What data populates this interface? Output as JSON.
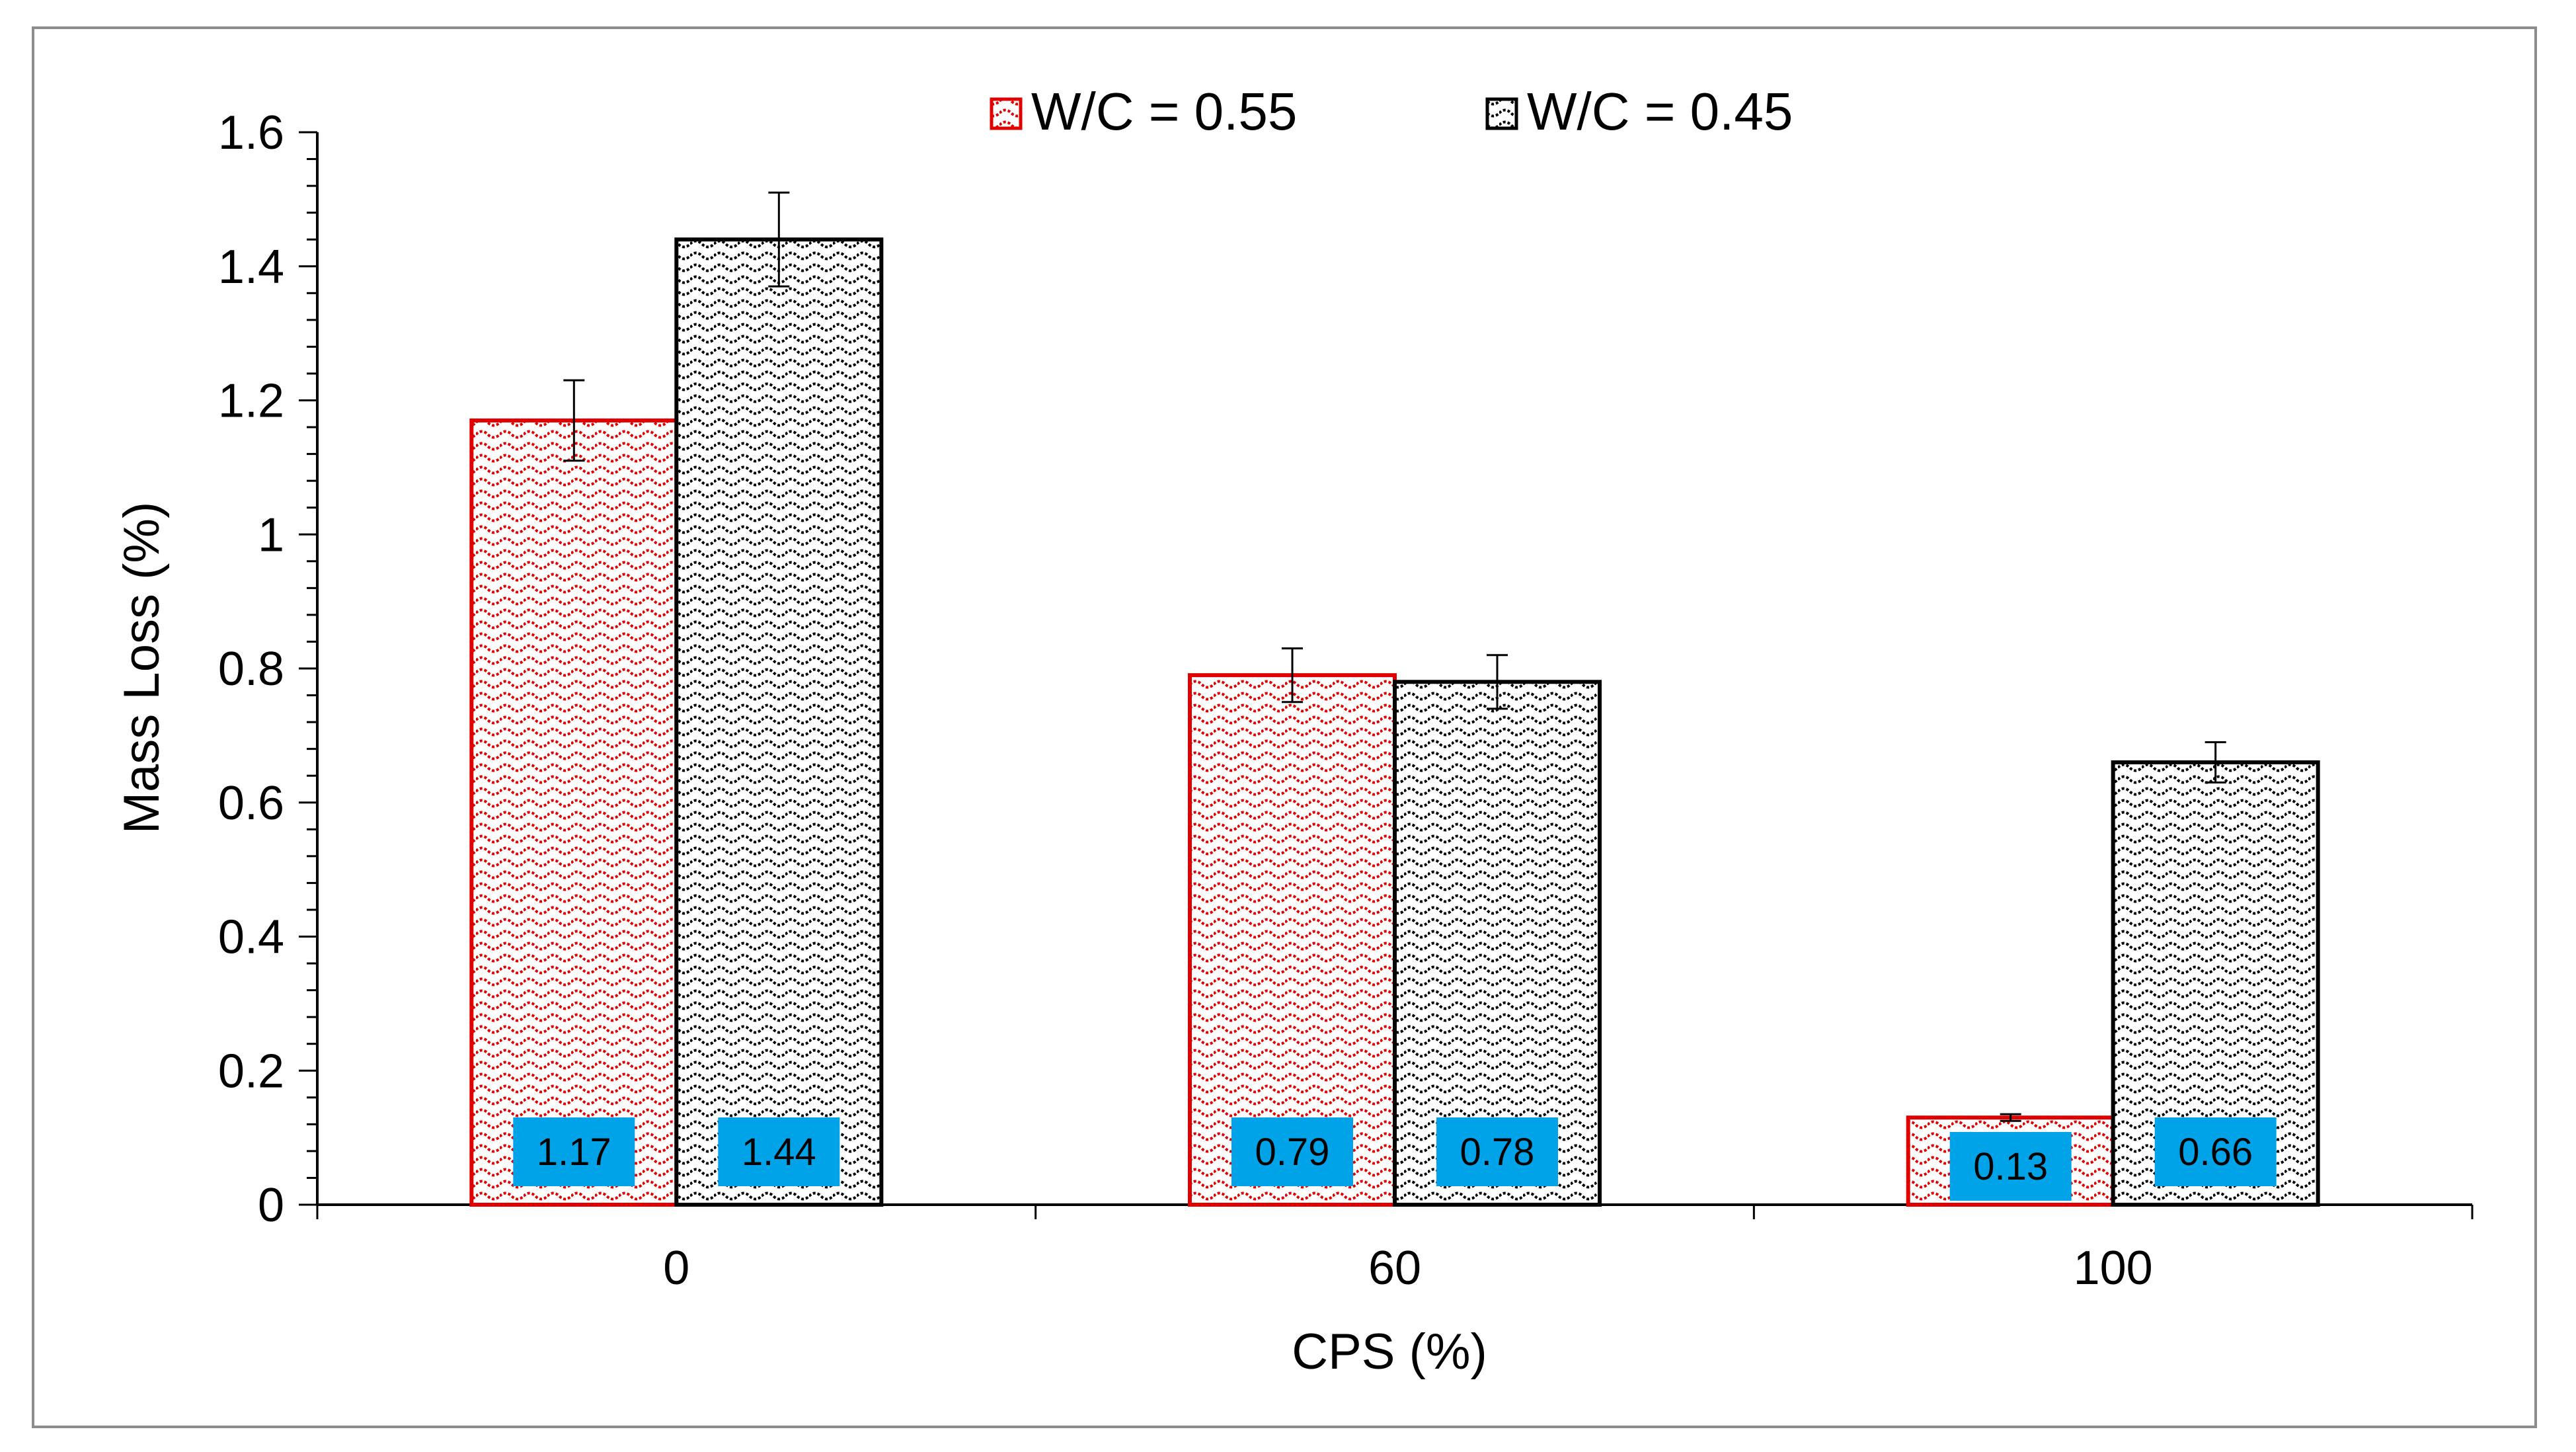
{
  "chart_data": {
    "type": "bar",
    "title": "",
    "xlabel": "CPS (%)",
    "ylabel": "Mass Loss (%)",
    "categories": [
      "0",
      "60",
      "100"
    ],
    "ylim": [
      0,
      1.6
    ],
    "ytick_step": 0.2,
    "ytick_labels": [
      "0",
      "0.2",
      "0.4",
      "0.6",
      "0.8",
      "1",
      "1.2",
      "1.4",
      "1.6"
    ],
    "grid": false,
    "legend_position": "top-center",
    "series": [
      {
        "name": "W/C = 0.55",
        "color": "#e00000",
        "values": [
          1.17,
          0.79,
          0.13
        ],
        "errors": [
          0.06,
          0.04,
          0.005
        ],
        "data_labels": [
          "1.17",
          "0.79",
          "0.13"
        ]
      },
      {
        "name": "W/C = 0.45",
        "color": "#000000",
        "values": [
          1.44,
          0.78,
          0.66
        ],
        "errors": [
          0.07,
          0.04,
          0.03
        ],
        "data_labels": [
          "1.44",
          "0.78",
          "0.66"
        ]
      }
    ],
    "data_label_bg": "#00a2e8"
  }
}
